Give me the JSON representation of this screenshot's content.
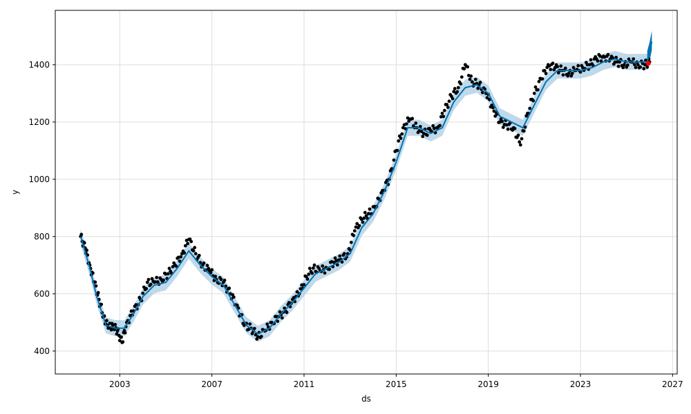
{
  "chart_data": {
    "type": "scatter",
    "title": "",
    "xlabel": "ds",
    "ylabel": "y",
    "xlim": [
      2000.2,
      2027.2
    ],
    "ylim": [
      320,
      1590
    ],
    "x_ticks": [
      2003,
      2007,
      2011,
      2015,
      2019,
      2023,
      2027
    ],
    "y_ticks": [
      400,
      600,
      800,
      1000,
      1200,
      1400
    ],
    "grid": true,
    "colors": {
      "observed": "#000000",
      "forecast_line": "#0072B2",
      "uncertainty_band": "#a9cce3",
      "future_band": "#0072B2",
      "last_point": "#ff0000"
    },
    "series": [
      {
        "kind": "observed-points",
        "x": [
          2001.3,
          2001.5,
          2001.7,
          2001.9,
          2002.1,
          2002.3,
          2002.5,
          2002.7,
          2002.9,
          2003.1,
          2003.3,
          2003.6,
          2003.9,
          2004.2,
          2004.5,
          2004.8,
          2005.1,
          2005.4,
          2005.7,
          2006.0,
          2006.3,
          2006.6,
          2006.9,
          2007.2,
          2007.5,
          2007.8,
          2008.1,
          2008.4,
          2008.7,
          2009.0,
          2009.3,
          2009.6,
          2009.9,
          2010.2,
          2010.5,
          2010.8,
          2011.1,
          2011.4,
          2011.7,
          2012.0,
          2012.3,
          2012.6,
          2012.9,
          2013.2,
          2013.5,
          2013.8,
          2014.1,
          2014.4,
          2014.7,
          2015.0,
          2015.3,
          2015.6,
          2015.9,
          2016.2,
          2016.5,
          2016.8,
          2017.1,
          2017.4,
          2017.7,
          2018.0,
          2018.3,
          2018.6,
          2018.9,
          2019.2,
          2019.5,
          2019.8,
          2020.1,
          2020.4,
          2020.7,
          2021.0,
          2021.3,
          2021.6,
          2021.9,
          2022.2,
          2022.5,
          2022.8,
          2023.1,
          2023.4,
          2023.7,
          2024.0,
          2024.3,
          2024.6,
          2024.9,
          2025.2,
          2025.5,
          2025.8,
          2026.0
        ],
        "y": [
          800,
          760,
          700,
          640,
          580,
          520,
          480,
          490,
          470,
          430,
          500,
          540,
          580,
          640,
          640,
          650,
          670,
          700,
          740,
          790,
          740,
          700,
          680,
          650,
          640,
          600,
          560,
          490,
          480,
          450,
          470,
          500,
          520,
          540,
          580,
          600,
          660,
          690,
          680,
          690,
          710,
          720,
          740,
          820,
          860,
          880,
          900,
          960,
          1000,
          1100,
          1180,
          1210,
          1180,
          1160,
          1170,
          1180,
          1240,
          1290,
          1320,
          1400,
          1340,
          1330,
          1300,
          1250,
          1200,
          1190,
          1180,
          1120,
          1230,
          1300,
          1350,
          1400,
          1390,
          1380,
          1370,
          1380,
          1390,
          1400,
          1420,
          1430,
          1420,
          1410,
          1400,
          1410,
          1400,
          1400,
          1410
        ]
      },
      {
        "kind": "forecast-trend",
        "x": [
          2001.3,
          2001.7,
          2002.0,
          2002.4,
          2002.8,
          2003.2,
          2003.6,
          2004.0,
          2004.5,
          2005.0,
          2005.5,
          2006.0,
          2006.5,
          2007.0,
          2007.5,
          2008.0,
          2008.5,
          2009.0,
          2009.5,
          2010.0,
          2010.5,
          2011.0,
          2011.5,
          2012.0,
          2012.5,
          2013.0,
          2013.5,
          2014.0,
          2014.5,
          2015.0,
          2015.5,
          2016.0,
          2016.5,
          2017.0,
          2017.5,
          2018.0,
          2018.5,
          2019.0,
          2019.5,
          2020.0,
          2020.5,
          2021.0,
          2021.5,
          2022.0,
          2022.5,
          2023.0,
          2023.5,
          2024.0,
          2024.5,
          2025.0,
          2025.5,
          2025.9,
          2026.0,
          2026.1
        ],
        "y": [
          800,
          690,
          590,
          490,
          480,
          480,
          530,
          590,
          630,
          640,
          690,
          750,
          700,
          660,
          630,
          560,
          490,
          460,
          480,
          530,
          570,
          620,
          670,
          690,
          710,
          740,
          830,
          880,
          960,
          1060,
          1180,
          1180,
          1160,
          1180,
          1270,
          1320,
          1330,
          1300,
          1220,
          1200,
          1180,
          1260,
          1340,
          1380,
          1380,
          1380,
          1390,
          1410,
          1420,
          1410,
          1410,
          1410,
          1440,
          1480
        ],
        "band_width": 28
      },
      {
        "kind": "last-observed",
        "x": [
          2025.95
        ],
        "y": [
          1405
        ]
      }
    ]
  }
}
